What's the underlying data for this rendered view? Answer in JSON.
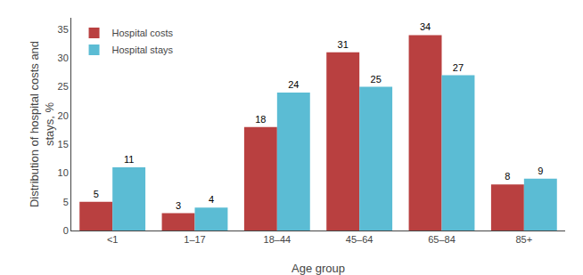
{
  "chart_data": {
    "type": "bar",
    "categories": [
      "<1",
      "1–17",
      "18–44",
      "45–64",
      "65–84",
      "85+"
    ],
    "series": [
      {
        "name": "Hospital costs",
        "color": "#b94040",
        "values": [
          5,
          3,
          18,
          31,
          34,
          8
        ]
      },
      {
        "name": "Hospital stays",
        "color": "#5bbcd4",
        "values": [
          11,
          4,
          24,
          25,
          27,
          9
        ]
      }
    ],
    "xlabel": "Age group",
    "ylabel": "Distribution of hospital costs and\nstays, %",
    "ylim": [
      0,
      37
    ],
    "yticks": [
      0,
      5,
      10,
      15,
      20,
      25,
      30,
      35
    ],
    "grid": false,
    "legend": "upper left",
    "data_labels": true
  }
}
